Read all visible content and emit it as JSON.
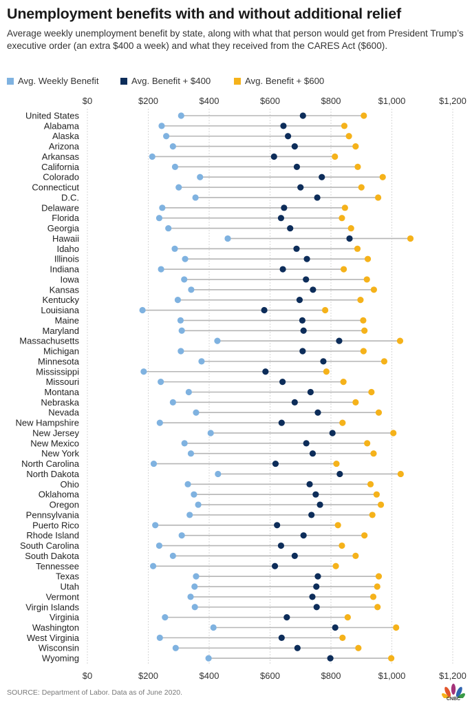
{
  "chart_data": {
    "type": "dot",
    "title": "Unemployment benefits with and without additional relief",
    "subtitle": "Average weekly unemployment benefit by state, along with what that person would get from President Trump’s executive order (an extra $400 a week) and what they received from the CARES Act ($600).",
    "source": "SOURCE: Department of Labor. Data as of June 2020.",
    "xlim": [
      0,
      1200
    ],
    "xticks": [
      0,
      200,
      400,
      600,
      800,
      1000,
      1200
    ],
    "xtick_labels": [
      "$0",
      "$200",
      "$400",
      "$600",
      "$800",
      "$1,000",
      "$1,200"
    ],
    "series_names": [
      "Avg. Weekly Benefit",
      "Avg. Benefit + $400",
      "Avg. Benefit + $600"
    ],
    "series_colors": [
      "#7fb2e0",
      "#0d2d5a",
      "#f5b21a"
    ],
    "connector_color": "#b5b5b5",
    "categories": [
      "United States",
      "Alabama",
      "Alaska",
      "Arizona",
      "Arkansas",
      "California",
      "Colorado",
      "Connecticut",
      "D.C.",
      "Delaware",
      "Florida",
      "Georgia",
      "Hawaii",
      "Idaho",
      "Illinois",
      "Indiana",
      "Iowa",
      "Kansas",
      "Kentucky",
      "Louisiana",
      "Maine",
      "Maryland",
      "Massachusetts",
      "Michigan",
      "Minnesota",
      "Mississippi",
      "Missouri",
      "Montana",
      "Nebraska",
      "Nevada",
      "New Hampshire",
      "New Jersey",
      "New Mexico",
      "New York",
      "North Carolina",
      "North Dakota",
      "Ohio",
      "Oklahoma",
      "Oregon",
      "Pennsylvania",
      "Puerto Rico",
      "Rhode Island",
      "South Carolina",
      "South Dakota",
      "Tennessee",
      "Texas",
      "Utah",
      "Vermont",
      "Virgin Islands",
      "Virginia",
      "Washington",
      "West Virginia",
      "Wisconsin",
      "Wyoming"
    ],
    "values": [
      308,
      244,
      259,
      281,
      213,
      288,
      370,
      300,
      355,
      246,
      236,
      266,
      461,
      287,
      321,
      242,
      318,
      341,
      297,
      181,
      306,
      310,
      427,
      307,
      375,
      185,
      241,
      333,
      281,
      357,
      238,
      405,
      319,
      340,
      218,
      429,
      330,
      350,
      364,
      336,
      223,
      310,
      236,
      281,
      216,
      357,
      352,
      339,
      353,
      255,
      414,
      238,
      290,
      398
    ]
  },
  "branding": {
    "logo_text": "CNBC"
  }
}
